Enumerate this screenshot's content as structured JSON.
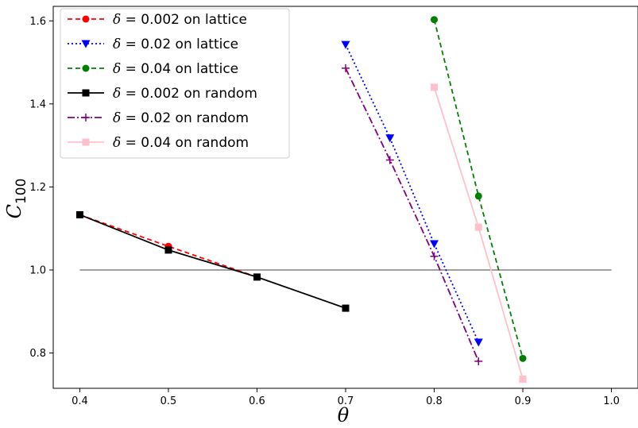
{
  "chart_data": {
    "type": "line",
    "xlabel": "θ",
    "ylabel": "C",
    "ylabel_sub": "100",
    "xlim": [
      0.37,
      1.03
    ],
    "ylim": [
      0.715,
      1.635
    ],
    "xticks": [
      0.4,
      0.5,
      0.6,
      0.7,
      0.8,
      0.9,
      1.0
    ],
    "xtick_labels": [
      "0.4",
      "0.5",
      "0.6",
      "0.7",
      "0.8",
      "0.9",
      "1.0"
    ],
    "yticks": [
      0.8,
      1.0,
      1.2,
      1.4,
      1.6
    ],
    "ytick_labels": [
      "0.8",
      "1.0",
      "1.2",
      "1.4",
      "1.6"
    ],
    "legend_position": "top-left",
    "reference_line": {
      "y": 1.0,
      "x": [
        0.4,
        1.0
      ],
      "color": "#808080"
    },
    "series": [
      {
        "name": "δ = 0.002 on lattice",
        "delta": "0.002",
        "suffix": " on lattice",
        "color": "#ff0000",
        "dash": "6,4",
        "marker": "circle",
        "x": [
          0.4,
          0.5,
          0.6
        ],
        "y": [
          1.133,
          1.057,
          0.983
        ]
      },
      {
        "name": "δ = 0.02 on lattice",
        "delta": "0.02",
        "suffix": " on lattice",
        "color": "#0000ff",
        "dash": "2,3",
        "marker": "triangle-down",
        "x": [
          0.7,
          0.75,
          0.8,
          0.85
        ],
        "y": [
          1.543,
          1.318,
          1.063,
          0.826
        ]
      },
      {
        "name": "δ = 0.04 on lattice",
        "delta": "0.04",
        "suffix": " on lattice",
        "color": "#008000",
        "dash": "6,4",
        "marker": "circle",
        "x": [
          0.8,
          0.85,
          0.9
        ],
        "y": [
          1.603,
          1.178,
          0.787
        ]
      },
      {
        "name": "δ = 0.002 on random",
        "delta": "0.002",
        "suffix": " on random",
        "color": "#000000",
        "dash": "",
        "marker": "square",
        "x": [
          0.4,
          0.5,
          0.6,
          0.7
        ],
        "y": [
          1.133,
          1.048,
          0.983,
          0.908
        ]
      },
      {
        "name": "δ = 0.02 on random",
        "delta": "0.02",
        "suffix": " on random",
        "color": "#800080",
        "dash": "9,3,2,3",
        "marker": "plus",
        "x": [
          0.7,
          0.75,
          0.8,
          0.85
        ],
        "y": [
          1.486,
          1.265,
          1.033,
          0.78
        ]
      },
      {
        "name": "δ = 0.04 on random",
        "delta": "0.04",
        "suffix": " on random",
        "color": "#ffc0cb",
        "dash": "",
        "marker": "square",
        "x": [
          0.8,
          0.85,
          0.9
        ],
        "y": [
          1.44,
          1.103,
          0.737
        ]
      }
    ]
  }
}
